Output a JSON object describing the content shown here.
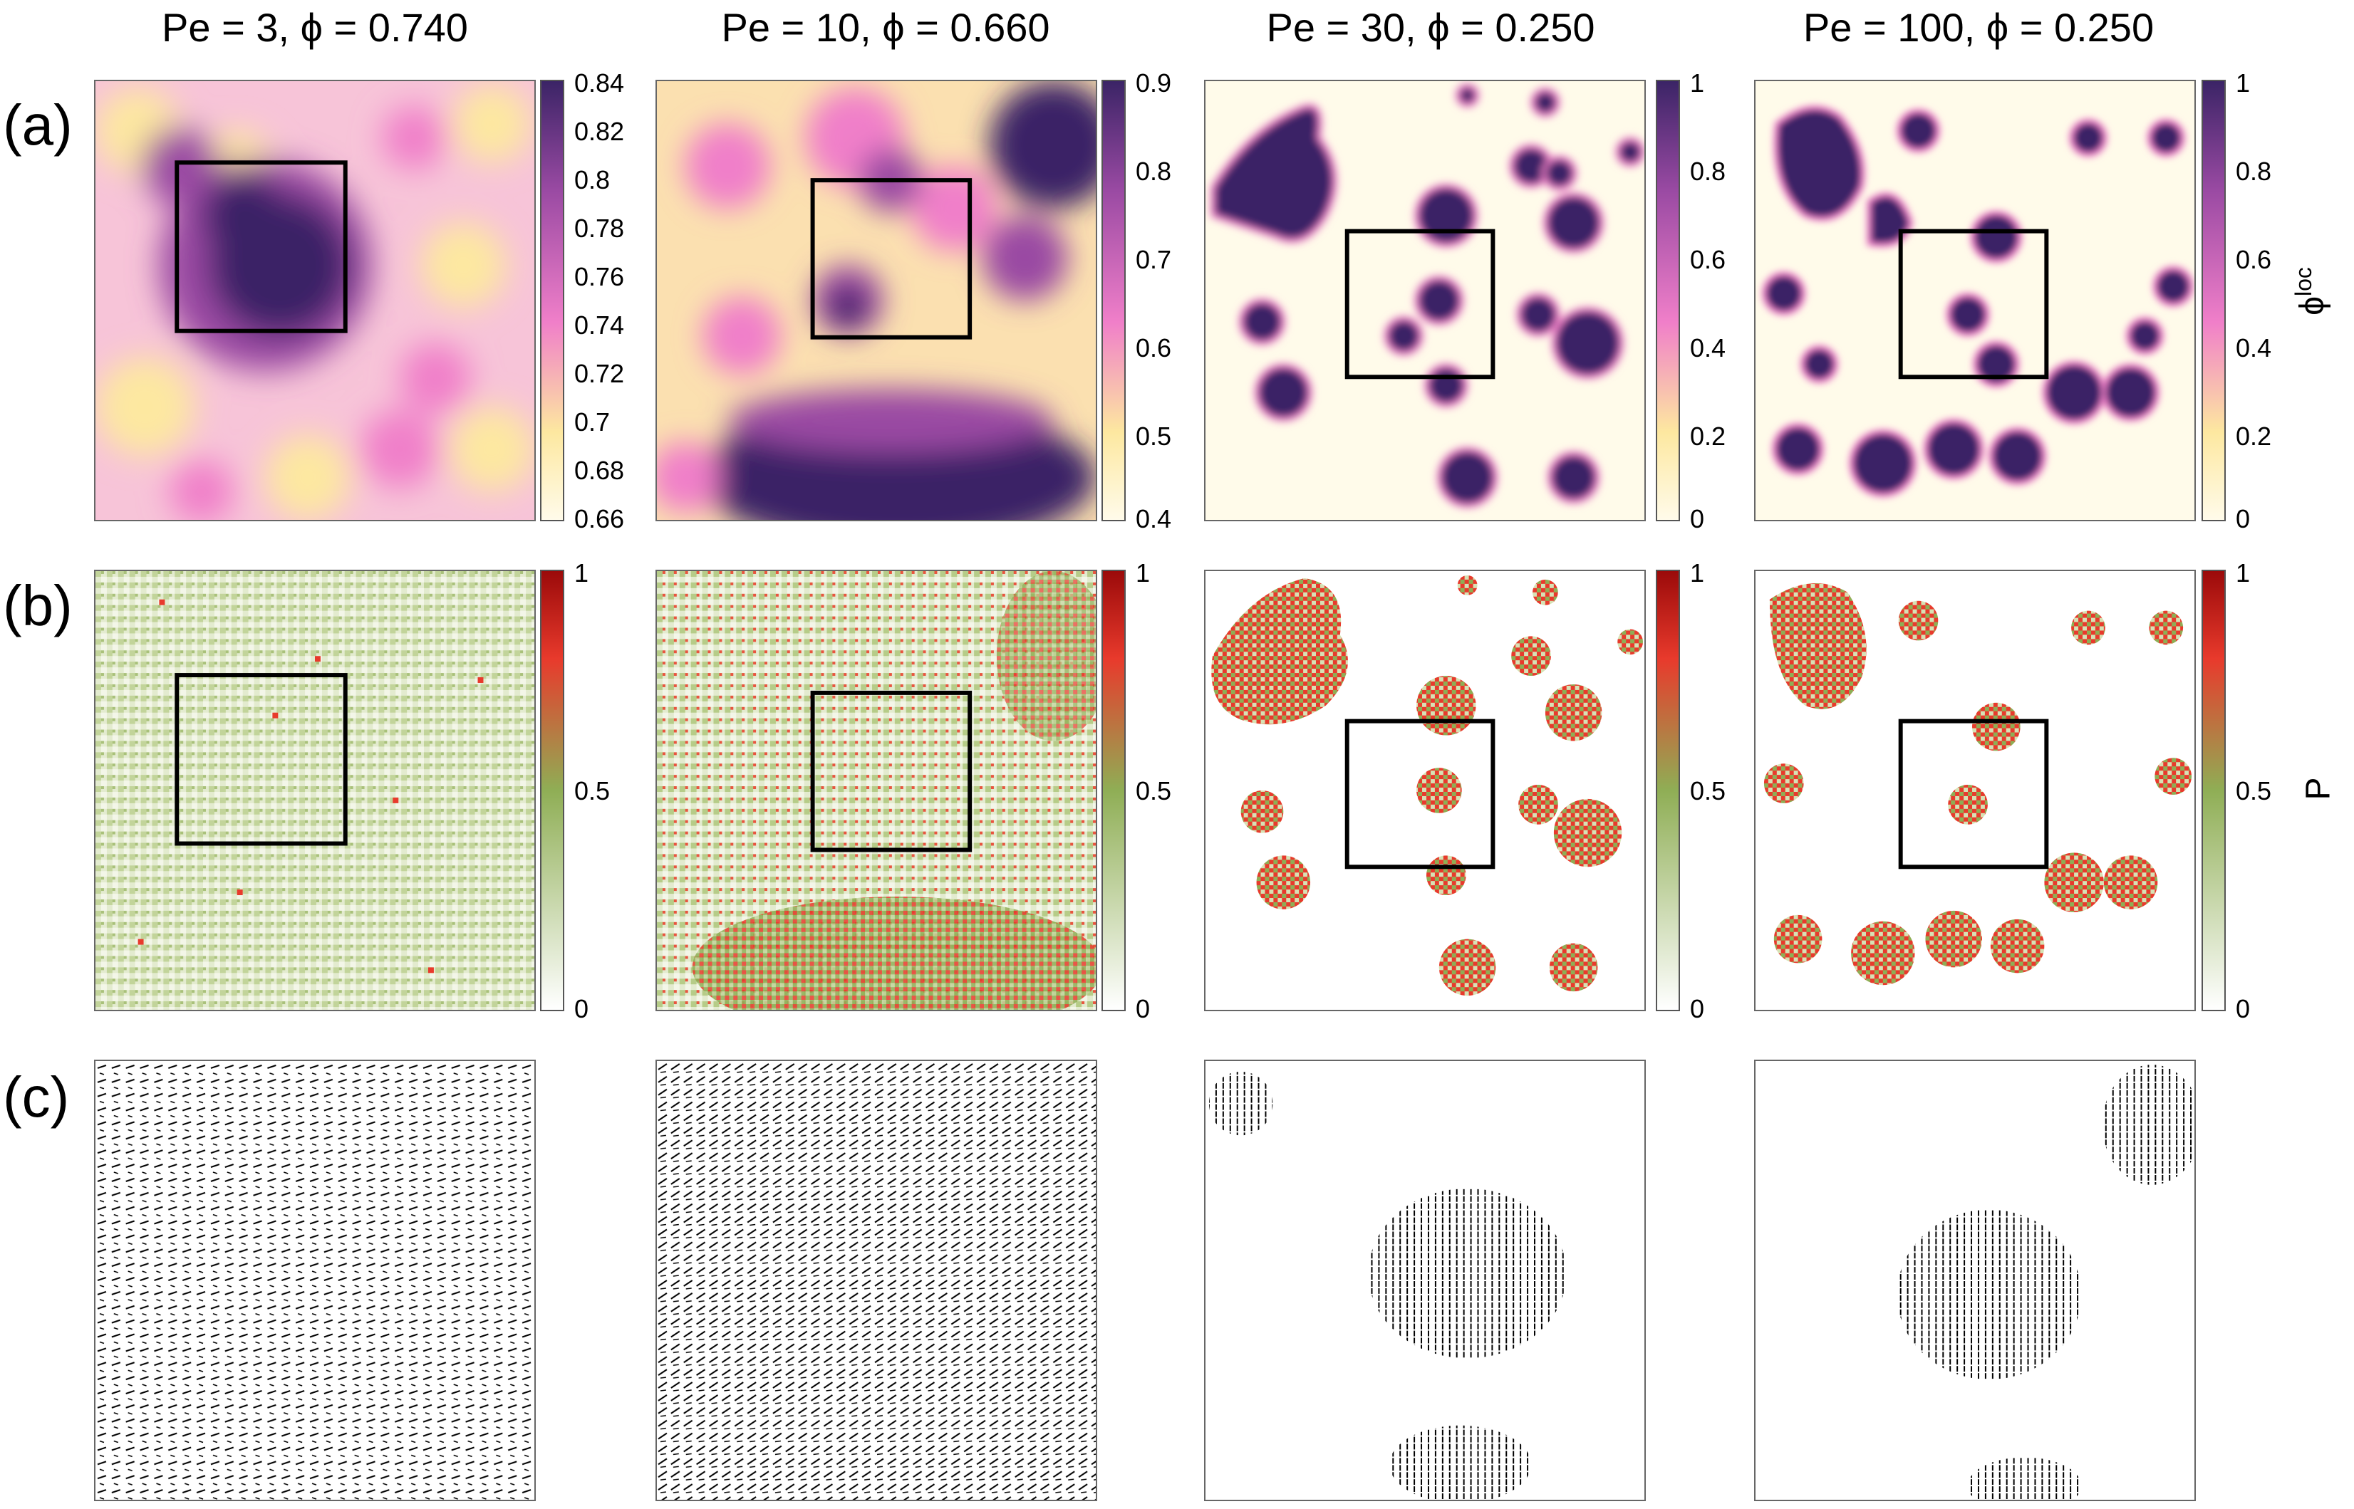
{
  "columns": [
    {
      "title": "Pe = 3, ϕ = 0.740"
    },
    {
      "title": "Pe = 10, ϕ = 0.660"
    },
    {
      "title": "Pe = 30, ϕ = 0.250"
    },
    {
      "title": "Pe = 100, ϕ = 0.250"
    }
  ],
  "rows": {
    "a": {
      "label": "(a)"
    },
    "b": {
      "label": "(b)"
    },
    "c": {
      "label": "(c)"
    }
  },
  "colorbars": {
    "a": [
      {
        "ticks": [
          "0.84",
          "0.82",
          "0.8",
          "0.78",
          "0.76",
          "0.74",
          "0.72",
          "0.7",
          "0.68",
          "0.66"
        ],
        "range": [
          0.66,
          0.84
        ]
      },
      {
        "ticks": [
          "0.9",
          "0.8",
          "0.7",
          "0.6",
          "0.5",
          "0.4"
        ],
        "range": [
          0.4,
          0.9
        ]
      },
      {
        "ticks": [
          "1",
          "0.8",
          "0.6",
          "0.4",
          "0.2",
          "0"
        ],
        "range": [
          0,
          1
        ]
      },
      {
        "ticks": [
          "1",
          "0.8",
          "0.6",
          "0.4",
          "0.2",
          "0"
        ],
        "range": [
          0,
          1
        ]
      }
    ],
    "b": [
      {
        "ticks": [
          "1",
          "0.5",
          "0"
        ],
        "range": [
          0,
          1
        ]
      },
      {
        "ticks": [
          "1",
          "0.5",
          "0"
        ],
        "range": [
          0,
          1
        ]
      },
      {
        "ticks": [
          "1",
          "0.5",
          "0"
        ],
        "range": [
          0,
          1
        ]
      },
      {
        "ticks": [
          "1",
          "0.5",
          "0"
        ],
        "range": [
          0,
          1
        ]
      }
    ]
  },
  "colorbar_labels": {
    "a_base": "ϕ",
    "a_sup": "loc",
    "b": "P"
  },
  "colors": {
    "density_low": "#fffbea",
    "density_mid_low": "#fde8a0",
    "density_mid": "#f07fc9",
    "density_mid_high": "#9a4aa3",
    "density_high": "#3b2466",
    "polar_low": "#ffffff",
    "polar_mid": "#8fae55",
    "polar_high_red": "#e83a2c",
    "polar_top": "#9b0a0a",
    "box_color": "#000000",
    "arrow_color": "#000000"
  }
}
